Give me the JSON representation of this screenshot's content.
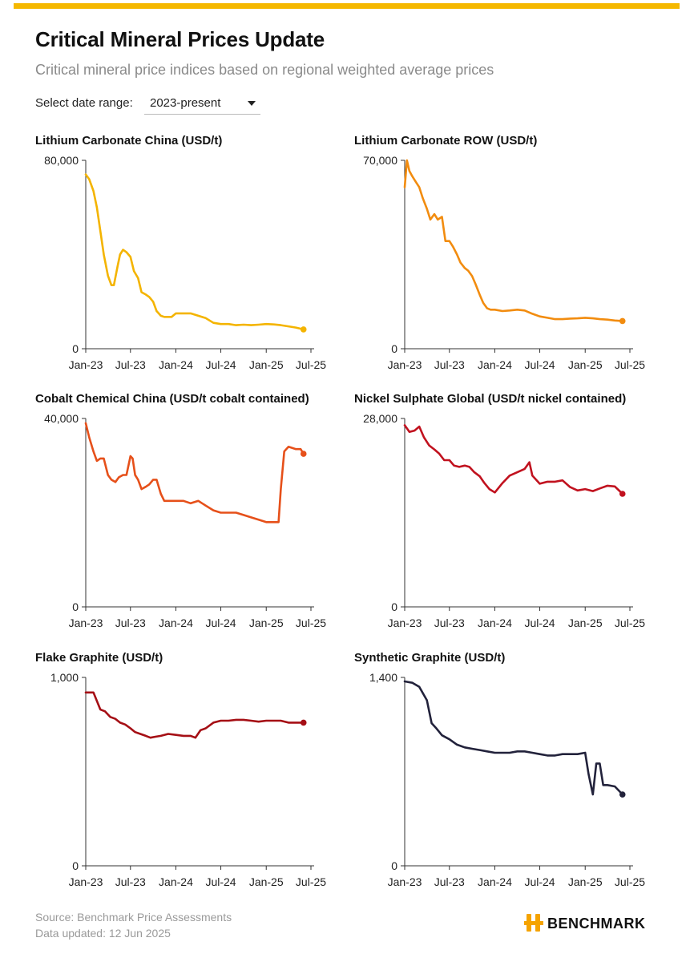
{
  "header": {
    "title": "Critical Mineral Prices Update",
    "subtitle": "Critical mineral price indices based on regional weighted average prices"
  },
  "controls": {
    "date_range_label": "Select date range:",
    "date_range_value": "2023-present"
  },
  "footer": {
    "source": "Source: Benchmark Price Assessments",
    "updated": "Data updated: 12 Jun 2025",
    "brand": "BENCHMARK"
  },
  "colors": {
    "accent_bar": "#f5b800",
    "brand_orange": "#f5a300"
  },
  "chart_data": [
    {
      "type": "line",
      "title": "Lithium Carbonate China (USD/t)",
      "color": "#f4b400",
      "ylim": [
        0,
        80000
      ],
      "ytick_labels": [
        "80,000",
        "0"
      ],
      "xtick_labels": [
        "Jan-23",
        "Jul-23",
        "Jan-24",
        "Jul-24",
        "Jan-25",
        "Jul-25"
      ],
      "x_range": [
        "2023-01-01",
        "2025-07-01"
      ],
      "x": [
        "2023-01-01",
        "2023-01-15",
        "2023-02-01",
        "2023-02-15",
        "2023-03-01",
        "2023-03-15",
        "2023-04-01",
        "2023-04-15",
        "2023-04-25",
        "2023-05-10",
        "2023-05-20",
        "2023-06-01",
        "2023-06-15",
        "2023-07-01",
        "2023-07-15",
        "2023-08-01",
        "2023-08-15",
        "2023-09-01",
        "2023-09-15",
        "2023-10-01",
        "2023-10-15",
        "2023-11-01",
        "2023-11-15",
        "2023-12-01",
        "2023-12-15",
        "2024-01-01",
        "2024-02-01",
        "2024-03-01",
        "2024-04-01",
        "2024-05-01",
        "2024-06-01",
        "2024-07-01",
        "2024-08-01",
        "2024-09-01",
        "2024-10-01",
        "2024-11-01",
        "2024-12-01",
        "2025-01-01",
        "2025-02-01",
        "2025-03-01",
        "2025-04-01",
        "2025-05-01",
        "2025-06-01"
      ],
      "y": [
        74000,
        72000,
        67000,
        60000,
        50000,
        40000,
        31000,
        27000,
        27000,
        35000,
        40000,
        42000,
        41000,
        39000,
        33000,
        30000,
        24000,
        23000,
        22000,
        20000,
        16000,
        14000,
        13500,
        13500,
        13500,
        15000,
        15000,
        15000,
        14000,
        13000,
        11000,
        10500,
        10500,
        10000,
        10200,
        10000,
        10200,
        10500,
        10300,
        10000,
        9500,
        9000,
        8200
      ]
    },
    {
      "type": "line",
      "title": "Lithium Carbonate ROW (USD/t)",
      "color": "#f28c0f",
      "ylim": [
        0,
        70000
      ],
      "ytick_labels": [
        "70,000",
        "0"
      ],
      "xtick_labels": [
        "Jan-23",
        "Jul-23",
        "Jan-24",
        "Jul-24",
        "Jan-25",
        "Jul-25"
      ],
      "x_range": [
        "2023-01-01",
        "2025-07-01"
      ],
      "x": [
        "2023-01-01",
        "2023-01-10",
        "2023-01-20",
        "2023-02-01",
        "2023-02-15",
        "2023-03-01",
        "2023-03-15",
        "2023-04-01",
        "2023-04-15",
        "2023-05-01",
        "2023-05-15",
        "2023-06-01",
        "2023-06-15",
        "2023-07-01",
        "2023-07-15",
        "2023-08-01",
        "2023-08-15",
        "2023-09-01",
        "2023-09-15",
        "2023-10-01",
        "2023-10-15",
        "2023-11-01",
        "2023-11-15",
        "2023-12-01",
        "2023-12-15",
        "2024-01-01",
        "2024-02-01",
        "2024-03-01",
        "2024-04-01",
        "2024-05-01",
        "2024-06-01",
        "2024-07-01",
        "2024-08-01",
        "2024-09-01",
        "2024-10-01",
        "2024-11-01",
        "2024-12-01",
        "2025-01-01",
        "2025-02-01",
        "2025-03-01",
        "2025-04-01",
        "2025-05-01",
        "2025-06-01"
      ],
      "y": [
        60000,
        70000,
        66000,
        64000,
        62000,
        60000,
        56000,
        52000,
        48000,
        50000,
        48000,
        49000,
        40000,
        40000,
        38000,
        35000,
        32000,
        30000,
        29000,
        27000,
        24000,
        20000,
        17000,
        15000,
        14500,
        14500,
        14000,
        14200,
        14500,
        14200,
        13000,
        12000,
        11500,
        11000,
        11000,
        11200,
        11300,
        11500,
        11300,
        11000,
        10800,
        10500,
        10300
      ]
    },
    {
      "type": "line",
      "title": "Cobalt Chemical China (USD/t cobalt contained)",
      "color": "#e6501a",
      "ylim": [
        0,
        40000
      ],
      "ytick_labels": [
        "40,000",
        "0"
      ],
      "xtick_labels": [
        "Jan-23",
        "Jul-23",
        "Jan-24",
        "Jul-24",
        "Jan-25",
        "Jul-25"
      ],
      "x_range": [
        "2023-01-01",
        "2025-07-01"
      ],
      "x": [
        "2023-01-01",
        "2023-01-15",
        "2023-02-01",
        "2023-02-15",
        "2023-03-01",
        "2023-03-15",
        "2023-04-01",
        "2023-04-15",
        "2023-05-01",
        "2023-05-15",
        "2023-06-01",
        "2023-06-15",
        "2023-07-01",
        "2023-07-10",
        "2023-07-20",
        "2023-08-01",
        "2023-08-15",
        "2023-09-01",
        "2023-09-15",
        "2023-10-01",
        "2023-10-15",
        "2023-11-01",
        "2023-11-15",
        "2023-12-01",
        "2024-01-01",
        "2024-02-01",
        "2024-03-01",
        "2024-04-01",
        "2024-05-01",
        "2024-06-01",
        "2024-07-01",
        "2024-08-01",
        "2024-09-01",
        "2024-10-01",
        "2024-11-01",
        "2024-12-01",
        "2025-01-01",
        "2025-02-01",
        "2025-02-20",
        "2025-03-01",
        "2025-03-15",
        "2025-04-01",
        "2025-05-01",
        "2025-05-20",
        "2025-06-01"
      ],
      "y": [
        39000,
        36000,
        33000,
        31000,
        31500,
        31500,
        28000,
        27000,
        26500,
        27500,
        28000,
        28000,
        32000,
        31500,
        28000,
        27000,
        25000,
        25500,
        26000,
        27000,
        27000,
        24000,
        22500,
        22500,
        22500,
        22500,
        22000,
        22500,
        21500,
        20500,
        20000,
        20000,
        20000,
        19500,
        19000,
        18500,
        18000,
        18000,
        18000,
        25000,
        33000,
        34000,
        33500,
        33500,
        32500
      ]
    },
    {
      "type": "line",
      "title": "Nickel Sulphate Global (USD/t nickel contained)",
      "color": "#c1121f",
      "ylim": [
        0,
        28000
      ],
      "ytick_labels": [
        "28,000",
        "0"
      ],
      "xtick_labels": [
        "Jan-23",
        "Jul-23",
        "Jan-24",
        "Jul-24",
        "Jan-25",
        "Jul-25"
      ],
      "x_range": [
        "2023-01-01",
        "2025-07-01"
      ],
      "x": [
        "2023-01-01",
        "2023-01-20",
        "2023-02-10",
        "2023-03-01",
        "2023-03-20",
        "2023-04-10",
        "2023-05-01",
        "2023-05-20",
        "2023-06-10",
        "2023-07-01",
        "2023-07-20",
        "2023-08-10",
        "2023-09-01",
        "2023-09-20",
        "2023-10-10",
        "2023-11-01",
        "2023-11-20",
        "2023-12-10",
        "2024-01-01",
        "2024-02-01",
        "2024-03-01",
        "2024-04-01",
        "2024-05-01",
        "2024-05-20",
        "2024-06-01",
        "2024-07-01",
        "2024-08-01",
        "2024-09-01",
        "2024-10-01",
        "2024-11-01",
        "2024-12-01",
        "2025-01-01",
        "2025-02-01",
        "2025-03-01",
        "2025-04-01",
        "2025-05-01",
        "2025-06-01"
      ],
      "y": [
        27000,
        26000,
        26200,
        26800,
        25200,
        24000,
        23400,
        22800,
        21800,
        21800,
        21000,
        20800,
        21000,
        20800,
        20000,
        19400,
        18400,
        17500,
        17000,
        18400,
        19500,
        20000,
        20500,
        21500,
        19500,
        18300,
        18600,
        18600,
        18800,
        17800,
        17300,
        17500,
        17200,
        17600,
        18000,
        17900,
        16800
      ]
    },
    {
      "type": "line",
      "title": "Flake Graphite (USD/t)",
      "color": "#a50f15",
      "ylim": [
        0,
        1000
      ],
      "ytick_labels": [
        "1,000",
        "0"
      ],
      "xtick_labels": [
        "Jan-23",
        "Jul-23",
        "Jan-24",
        "Jul-24",
        "Jan-25",
        "Jul-25"
      ],
      "x_range": [
        "2023-01-01",
        "2025-07-01"
      ],
      "x": [
        "2023-01-01",
        "2023-02-01",
        "2023-03-01",
        "2023-03-20",
        "2023-04-10",
        "2023-05-01",
        "2023-05-20",
        "2023-06-10",
        "2023-07-01",
        "2023-07-20",
        "2023-08-10",
        "2023-09-01",
        "2023-09-20",
        "2023-10-10",
        "2023-11-01",
        "2023-12-01",
        "2024-01-01",
        "2024-02-01",
        "2024-03-01",
        "2024-03-20",
        "2024-04-10",
        "2024-05-01",
        "2024-06-01",
        "2024-07-01",
        "2024-08-01",
        "2024-09-01",
        "2024-10-01",
        "2024-11-01",
        "2024-12-01",
        "2025-01-01",
        "2025-02-01",
        "2025-03-01",
        "2025-04-01",
        "2025-05-01",
        "2025-06-01"
      ],
      "y": [
        920,
        920,
        830,
        820,
        790,
        780,
        760,
        750,
        730,
        710,
        700,
        690,
        680,
        685,
        690,
        700,
        695,
        690,
        690,
        680,
        720,
        730,
        760,
        770,
        770,
        775,
        775,
        770,
        765,
        770,
        770,
        770,
        760,
        760,
        760
      ]
    },
    {
      "type": "line",
      "title": "Synthetic Graphite (USD/t)",
      "color": "#22223b",
      "ylim": [
        0,
        1400
      ],
      "ytick_labels": [
        "1,400",
        "0"
      ],
      "xtick_labels": [
        "Jan-23",
        "Jul-23",
        "Jan-24",
        "Jul-24",
        "Jan-25",
        "Jul-25"
      ],
      "x_range": [
        "2023-01-01",
        "2025-07-01"
      ],
      "x": [
        "2023-01-01",
        "2023-02-01",
        "2023-03-01",
        "2023-04-01",
        "2023-04-20",
        "2023-05-10",
        "2023-06-01",
        "2023-07-01",
        "2023-08-01",
        "2023-09-01",
        "2023-10-01",
        "2023-11-01",
        "2023-12-01",
        "2024-01-01",
        "2024-02-01",
        "2024-03-01",
        "2024-04-01",
        "2024-05-01",
        "2024-06-01",
        "2024-07-01",
        "2024-08-01",
        "2024-09-01",
        "2024-10-01",
        "2024-11-01",
        "2024-12-01",
        "2025-01-01",
        "2025-01-15",
        "2025-02-01",
        "2025-02-15",
        "2025-03-01",
        "2025-03-15",
        "2025-04-01",
        "2025-05-01",
        "2025-06-01"
      ],
      "y": [
        1370,
        1360,
        1330,
        1230,
        1060,
        1020,
        970,
        940,
        900,
        880,
        870,
        860,
        850,
        840,
        840,
        840,
        850,
        850,
        840,
        830,
        820,
        820,
        830,
        830,
        830,
        840,
        680,
        530,
        760,
        760,
        600,
        600,
        590,
        530
      ]
    }
  ]
}
